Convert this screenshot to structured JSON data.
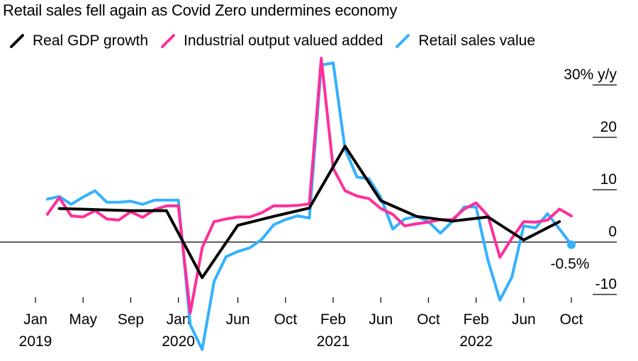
{
  "title": "Retail sales fell again as Covid Zero undermines economy",
  "legend": [
    {
      "name": "Real GDP growth",
      "color": "#000000"
    },
    {
      "name": "Industrial output valued added",
      "color": "#ff2e9b"
    },
    {
      "name": "Retail sales value",
      "color": "#33b1ff"
    }
  ],
  "chart_data": {
    "type": "line",
    "title": "Retail sales fell again as Covid Zero undermines economy",
    "xlabel": "",
    "ylabel": "% y/y",
    "ylim": [
      -10,
      30
    ],
    "y_ticks": [
      -10,
      0,
      10,
      20,
      30
    ],
    "y_tick_labels": [
      "-10",
      "0",
      "10",
      "20",
      "30% y/y"
    ],
    "x_range_months": [
      0,
      46
    ],
    "x_ticks": [
      {
        "month": 0,
        "label": "Jan"
      },
      {
        "month": 4,
        "label": "May"
      },
      {
        "month": 8,
        "label": "Sep"
      },
      {
        "month": 12,
        "label": "Jan"
      },
      {
        "month": 17,
        "label": "Jun"
      },
      {
        "month": 21,
        "label": "Oct"
      },
      {
        "month": 25,
        "label": "Feb"
      },
      {
        "month": 29,
        "label": "Jun"
      },
      {
        "month": 33,
        "label": "Oct"
      },
      {
        "month": 37,
        "label": "Feb"
      },
      {
        "month": 41,
        "label": "Jun"
      },
      {
        "month": 45,
        "label": "Oct"
      }
    ],
    "year_labels": [
      {
        "month": 0,
        "label": "2019"
      },
      {
        "month": 12,
        "label": "2020"
      },
      {
        "month": 25,
        "label": "2021"
      },
      {
        "month": 37,
        "label": "2022"
      }
    ],
    "annotation": {
      "month": 45,
      "value": -0.5,
      "label": "-0.5%"
    },
    "series": [
      {
        "name": "Real GDP growth",
        "color": "#000000",
        "x": [
          2,
          5,
          8,
          11,
          14,
          17,
          20,
          23,
          26,
          29,
          32,
          35,
          38,
          41,
          44
        ],
        "values": [
          6.4,
          6.2,
          6.0,
          6.0,
          -6.8,
          3.2,
          4.9,
          6.5,
          18.3,
          7.9,
          4.9,
          4.0,
          4.8,
          0.4,
          3.9
        ]
      },
      {
        "name": "Industrial output valued added",
        "color": "#ff2e9b",
        "x": [
          1,
          2,
          3,
          4,
          5,
          6,
          7,
          8,
          9,
          10,
          11,
          12,
          13,
          14,
          15,
          16,
          17,
          18,
          19,
          20,
          21,
          22,
          23,
          24,
          25,
          26,
          27,
          28,
          29,
          30,
          31,
          32,
          33,
          34,
          35,
          36,
          37,
          38,
          39,
          40,
          41,
          42,
          43,
          44,
          45
        ],
        "values": [
          5.3,
          8.5,
          5.0,
          4.8,
          6.0,
          4.4,
          4.2,
          5.8,
          4.7,
          6.2,
          6.9,
          6.9,
          -13.5,
          -1.1,
          3.9,
          4.4,
          4.8,
          4.8,
          5.6,
          6.9,
          6.9,
          7.0,
          7.3,
          35.1,
          14.1,
          9.8,
          8.8,
          8.3,
          6.4,
          5.3,
          3.1,
          3.5,
          3.8,
          4.3,
          4.3,
          6.3,
          7.5,
          5.0,
          -2.9,
          0.7,
          3.9,
          3.8,
          4.2,
          6.3,
          5.0
        ]
      },
      {
        "name": "Retail sales value",
        "color": "#33b1ff",
        "x": [
          1,
          2,
          3,
          4,
          5,
          6,
          7,
          8,
          9,
          10,
          11,
          12,
          13,
          14,
          15,
          16,
          17,
          18,
          19,
          20,
          21,
          22,
          23,
          24,
          25,
          26,
          27,
          28,
          29,
          30,
          31,
          32,
          33,
          34,
          35,
          36,
          37,
          38,
          39,
          40,
          41,
          42,
          43,
          44,
          45
        ],
        "values": [
          8.2,
          8.7,
          7.2,
          8.6,
          9.8,
          7.6,
          7.6,
          7.8,
          7.2,
          8.0,
          8.0,
          8.0,
          -15.8,
          -20.5,
          -7.5,
          -2.8,
          -1.8,
          -1.1,
          0.5,
          3.3,
          4.3,
          5.0,
          4.6,
          33.8,
          34.2,
          17.7,
          12.4,
          12.1,
          8.5,
          2.5,
          4.4,
          4.9,
          3.9,
          1.7,
          3.9,
          6.7,
          6.7,
          -3.5,
          -11.1,
          -6.7,
          3.1,
          2.7,
          5.4,
          2.5,
          -0.5
        ]
      }
    ]
  }
}
